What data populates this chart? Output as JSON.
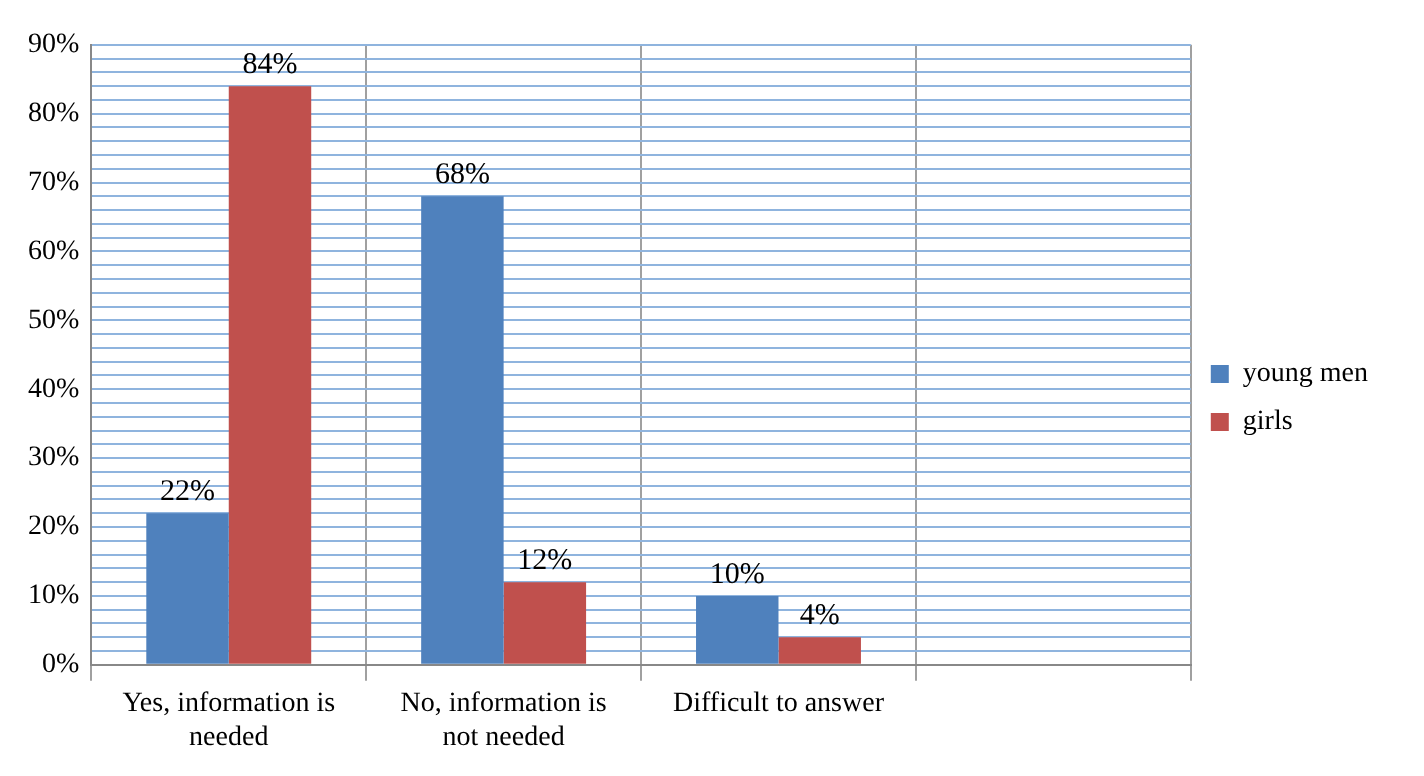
{
  "chart_data": {
    "type": "bar",
    "categories": [
      "Yes, information is needed",
      "No, information is not needed",
      "Difficult to answer",
      null
    ],
    "series": [
      {
        "name": "young men",
        "color": "#4f81bd",
        "values": [
          22,
          68,
          10,
          null
        ],
        "value_labels": [
          "22%",
          "68%",
          "10%",
          null
        ]
      },
      {
        "name": "girls",
        "color": "#c0504d",
        "values": [
          84,
          12,
          4,
          null
        ],
        "value_labels": [
          "84%",
          "12%",
          "4%",
          null
        ]
      }
    ],
    "ylim": [
      0,
      90
    ],
    "yticks": [
      {
        "value": 0,
        "label": "0%"
      },
      {
        "value": 2,
        "label": null
      },
      {
        "value": 4,
        "label": null
      },
      {
        "value": 6,
        "label": null
      },
      {
        "value": 8,
        "label": null
      },
      {
        "value": 10,
        "label": "10%"
      },
      {
        "value": 12,
        "label": null
      },
      {
        "value": 14,
        "label": null
      },
      {
        "value": 16,
        "label": null
      },
      {
        "value": 18,
        "label": null
      },
      {
        "value": 20,
        "label": "20%"
      },
      {
        "value": 22,
        "label": null
      },
      {
        "value": 24,
        "label": null
      },
      {
        "value": 26,
        "label": null
      },
      {
        "value": 28,
        "label": null
      },
      {
        "value": 30,
        "label": "30%"
      },
      {
        "value": 32,
        "label": null
      },
      {
        "value": 34,
        "label": null
      },
      {
        "value": 36,
        "label": null
      },
      {
        "value": 38,
        "label": null
      },
      {
        "value": 40,
        "label": "40%"
      },
      {
        "value": 42,
        "label": null
      },
      {
        "value": 44,
        "label": null
      },
      {
        "value": 46,
        "label": null
      },
      {
        "value": 48,
        "label": null
      },
      {
        "value": 50,
        "label": "50%"
      },
      {
        "value": 52,
        "label": null
      },
      {
        "value": 54,
        "label": null
      },
      {
        "value": 56,
        "label": null
      },
      {
        "value": 58,
        "label": null
      },
      {
        "value": 60,
        "label": "60%"
      },
      {
        "value": 62,
        "label": null
      },
      {
        "value": 64,
        "label": null
      },
      {
        "value": 66,
        "label": null
      },
      {
        "value": 68,
        "label": null
      },
      {
        "value": 70,
        "label": "70%"
      },
      {
        "value": 72,
        "label": null
      },
      {
        "value": 74,
        "label": null
      },
      {
        "value": 76,
        "label": null
      },
      {
        "value": 78,
        "label": null
      },
      {
        "value": 80,
        "label": "80%"
      },
      {
        "value": 82,
        "label": null
      },
      {
        "value": 84,
        "label": null
      },
      {
        "value": 86,
        "label": null
      },
      {
        "value": 88,
        "label": null
      },
      {
        "value": 90,
        "label": "90%"
      }
    ],
    "grid": true,
    "legend": "right"
  }
}
